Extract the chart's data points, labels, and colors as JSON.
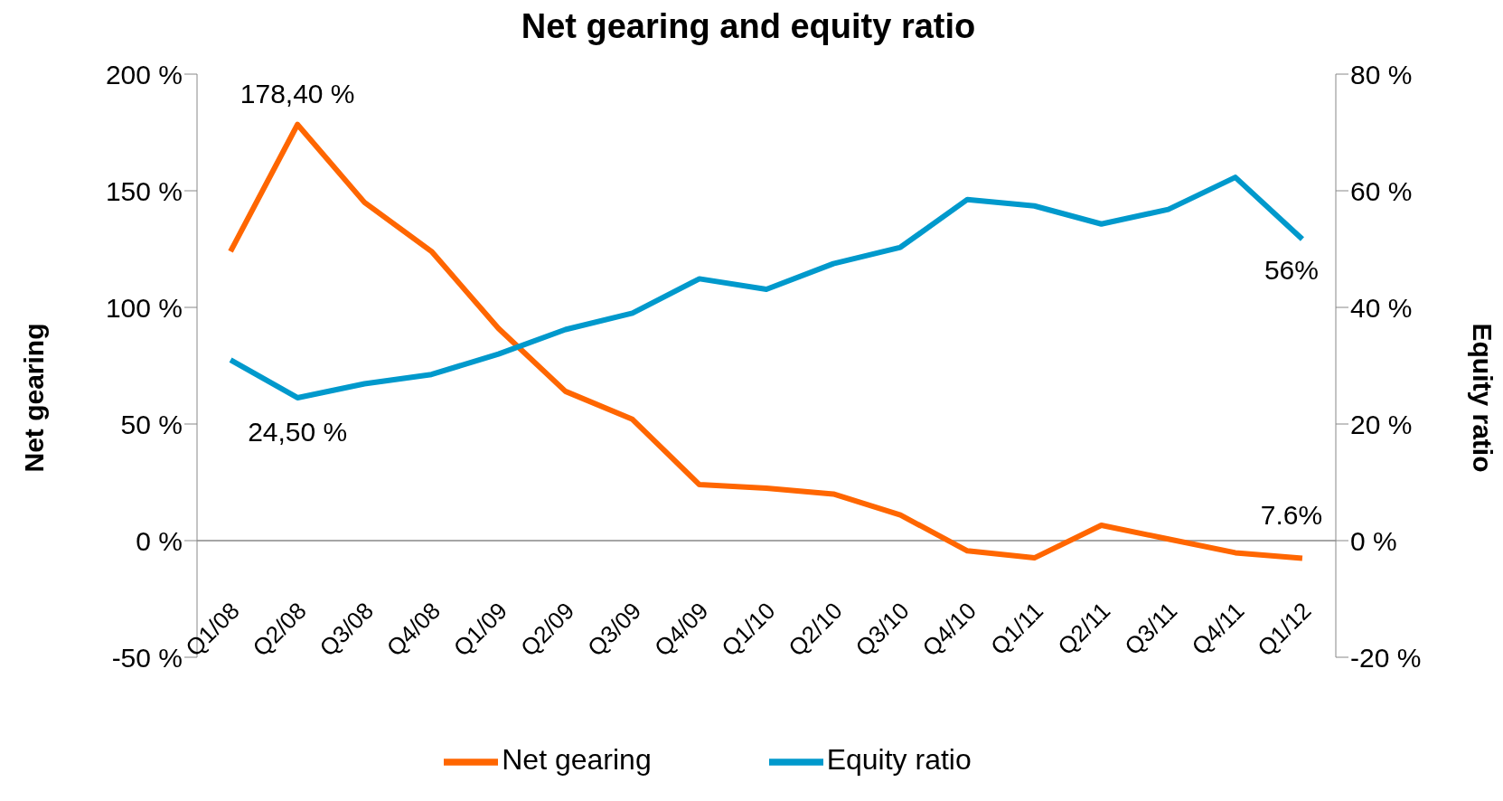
{
  "chart_data": {
    "type": "line",
    "title": "Net gearing and equity ratio",
    "ylabel": "Net gearing",
    "y2label": "Equity ratio",
    "categories": [
      "Q1/08",
      "Q2/08",
      "Q3/08",
      "Q4/08",
      "Q1/09",
      "Q2/09",
      "Q3/09",
      "Q4/09",
      "Q1/10",
      "Q2/10",
      "Q3/10",
      "Q4/10",
      "Q1/11",
      "Q2/11",
      "Q3/11",
      "Q4/11",
      "Q1/12"
    ],
    "series": [
      {
        "name": "Net gearing",
        "color": "#ff6600",
        "values": [
          124,
          178.4,
          145,
          124,
          91,
          64,
          52,
          24,
          22.5,
          20,
          11,
          -4.4,
          -7.4,
          6.6,
          0.7,
          -5.2,
          -7.6
        ],
        "value_labels": [
          null,
          "178,40 %",
          null,
          null,
          null,
          null,
          null,
          null,
          null,
          null,
          null,
          null,
          null,
          null,
          null,
          null,
          null
        ]
      },
      {
        "name": "Equity ratio",
        "color": "#0099cc",
        "axis": "y2",
        "values": [
          31,
          24.5,
          26.9,
          28.5,
          32,
          36.2,
          39,
          44.9,
          43.1,
          47.5,
          50.3,
          58.5,
          57.4,
          54.3,
          56.8,
          62.3,
          51.7
        ],
        "value_labels": [
          null,
          "24,50 %",
          null,
          null,
          null,
          null,
          null,
          null,
          null,
          null,
          null,
          null,
          null,
          null,
          null,
          null,
          null
        ]
      }
    ],
    "annotations": [
      "56%",
      {
        "text": "7.6%",
        "x": "Q1/12",
        "y": -7.6
      }
    ],
    "ylim": [
      -50,
      200
    ],
    "yticks": [
      {
        "value": -50,
        "label": "-50 %"
      },
      {
        "value": 0,
        "label": "0 %"
      },
      {
        "value": 50,
        "label": "50 %"
      },
      {
        "value": 100,
        "label": "100 %"
      },
      {
        "value": 150,
        "label": "150 %"
      },
      {
        "value": 200,
        "label": "200 %"
      }
    ],
    "y2lim": [
      -20,
      80
    ],
    "y2ticks": [
      {
        "value": -20,
        "label": "-20 %"
      },
      {
        "value": 0,
        "label": "0 %"
      },
      {
        "value": 20,
        "label": "20 %"
      },
      {
        "value": 40,
        "label": "40 %"
      },
      {
        "value": 60,
        "label": "60 %"
      },
      {
        "value": 80,
        "label": "80 %"
      }
    ],
    "grid": false,
    "legend": "bottom",
    "marker": "none",
    "line_style": "solid"
  }
}
